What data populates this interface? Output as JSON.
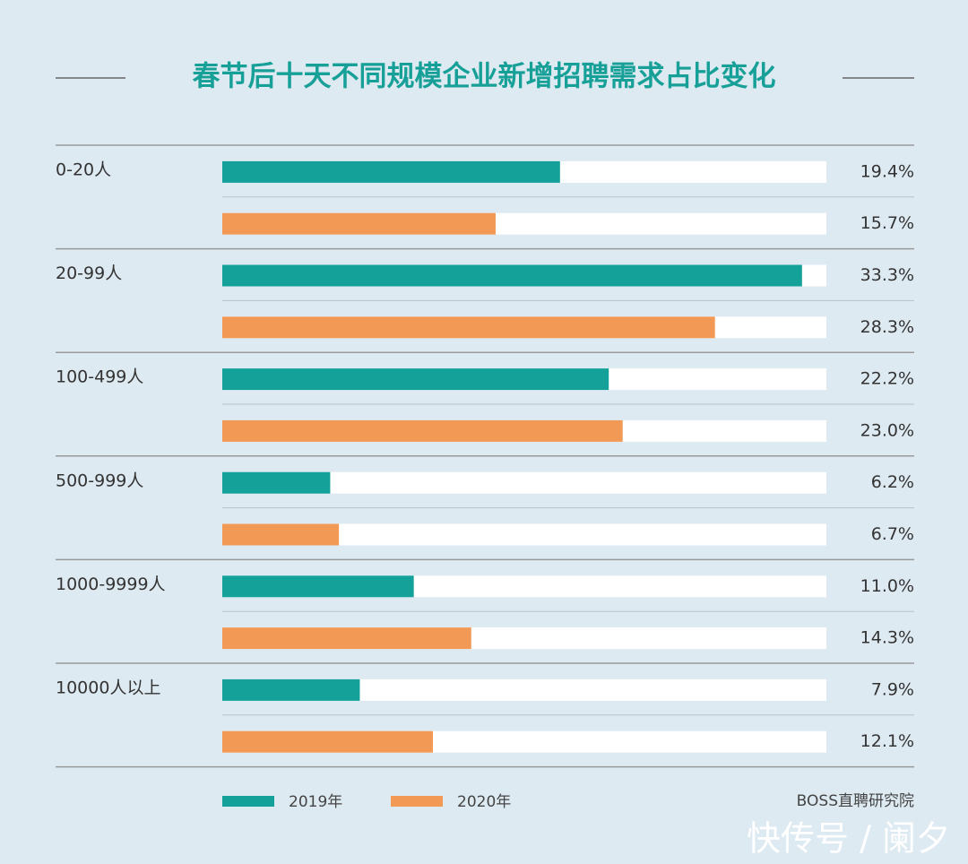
{
  "chart_data": {
    "type": "bar",
    "orientation": "horizontal",
    "title": "春节后十天不同规模企业新增招聘需求占比变化",
    "categories": [
      "0-20人",
      "20-99人",
      "100-499人",
      "500-999人",
      "1000-9999人",
      "10000人以上"
    ],
    "series": [
      {
        "name": "2019年",
        "color": "#14a19a",
        "values": [
          19.4,
          33.3,
          22.2,
          6.2,
          11.0,
          7.9
        ],
        "value_labels": [
          "19.4%",
          "33.3%",
          "22.2%",
          "6.2%",
          "11.0%",
          "7.9%"
        ]
      },
      {
        "name": "2020年",
        "color": "#f29a55",
        "values": [
          15.7,
          28.3,
          23.0,
          6.7,
          14.3,
          12.1
        ],
        "value_labels": [
          "15.7%",
          "28.3%",
          "23.0%",
          "6.7%",
          "14.3%",
          "12.1%"
        ]
      }
    ],
    "xlim": [
      0,
      34.7
    ],
    "source": "BOSS直聘研究院",
    "watermark": "快传号 / 阑夕"
  }
}
